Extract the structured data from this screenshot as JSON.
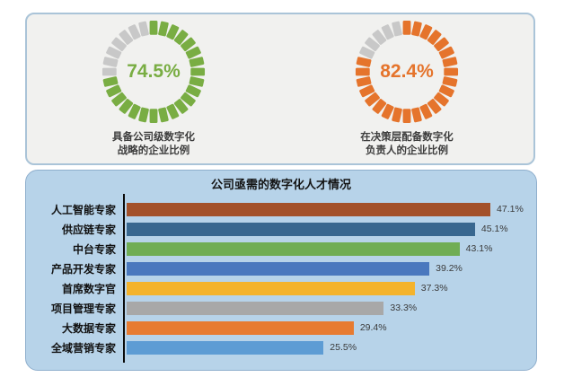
{
  "kpi_card": {
    "background": "#f1f1ef",
    "border_color": "#aac4d8"
  },
  "bar_panel": {
    "background": "#b7d3e9",
    "border_color": "#8fafcd"
  },
  "chart_data": [
    {
      "type": "donut",
      "value": 74.5,
      "value_label": "74.5%",
      "caption": "具备公司级数字化\n战略的企业比例",
      "color": "#79ad43",
      "rest_color": "#c8c8c8",
      "segments": 28,
      "start": "top",
      "direction": "clockwise"
    },
    {
      "type": "donut",
      "value": 82.4,
      "value_label": "82.4%",
      "caption": "在决策层配备数字化\n负责人的企业比例",
      "color": "#e5742c",
      "rest_color": "#c8c8c8",
      "segments": 28,
      "start": "top",
      "direction": "clockwise"
    },
    {
      "type": "bar",
      "title": "公司亟需的数字化人才情况",
      "orientation": "horizontal",
      "xlim": [
        0,
        50
      ],
      "grid": false,
      "legend": false,
      "categories": [
        "人工智能专家",
        "供应链专家",
        "中台专家",
        "产品开发专家",
        "首席数字官",
        "项目管理专家",
        "大数据专家",
        "全域营销专家"
      ],
      "values": [
        47.1,
        45.1,
        43.1,
        39.2,
        37.3,
        33.3,
        29.4,
        25.5
      ],
      "value_labels": [
        "47.1%",
        "45.1%",
        "43.1%",
        "39.2%",
        "37.3%",
        "33.3%",
        "29.4%",
        "25.5%"
      ],
      "colors": [
        "#a3512a",
        "#38678f",
        "#70ad54",
        "#4a78be",
        "#f4b32c",
        "#a8a8a8",
        "#e77b31",
        "#5d9cd4"
      ],
      "axis_color": "#0a0a0a"
    }
  ]
}
